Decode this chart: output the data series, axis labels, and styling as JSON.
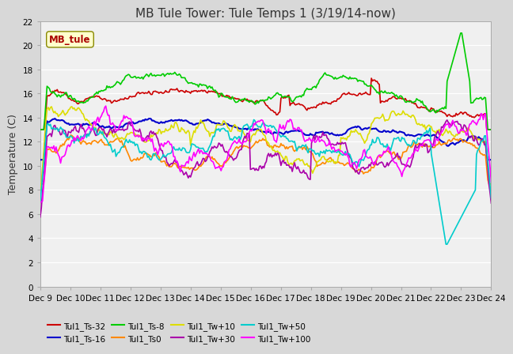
{
  "title": "MB Tule Tower: Tule Temps 1 (3/19/14-now)",
  "ylabel": "Temperature (C)",
  "xlim": [
    0,
    15
  ],
  "ylim": [
    0,
    22
  ],
  "yticks": [
    0,
    2,
    4,
    6,
    8,
    10,
    12,
    14,
    16,
    18,
    20,
    22
  ],
  "xtick_labels": [
    "Dec 9",
    "Dec 10",
    "Dec 11",
    "Dec 12",
    "Dec 13",
    "Dec 14",
    "Dec 15",
    "Dec 16",
    "Dec 17",
    "Dec 18",
    "Dec 19",
    "Dec 20",
    "Dec 21",
    "Dec 22",
    "Dec 23",
    "Dec 24"
  ],
  "series": [
    {
      "label": "Tul1_Ts-32",
      "color": "#cc0000",
      "lw": 1.2
    },
    {
      "label": "Tul1_Ts-16",
      "color": "#0000cc",
      "lw": 1.5
    },
    {
      "label": "Tul1_Ts-8",
      "color": "#00cc00",
      "lw": 1.2
    },
    {
      "label": "Tul1_Ts0",
      "color": "#ff8800",
      "lw": 1.2
    },
    {
      "label": "Tul1_Tw+10",
      "color": "#dddd00",
      "lw": 1.2
    },
    {
      "label": "Tul1_Tw+30",
      "color": "#aa00aa",
      "lw": 1.2
    },
    {
      "label": "Tul1_Tw+50",
      "color": "#00cccc",
      "lw": 1.2
    },
    {
      "label": "Tul1_Tw+100",
      "color": "#ff00ff",
      "lw": 1.2
    }
  ],
  "watermark": "MB_tule",
  "title_fontsize": 11,
  "axis_fontsize": 9,
  "tick_fontsize": 7.5
}
